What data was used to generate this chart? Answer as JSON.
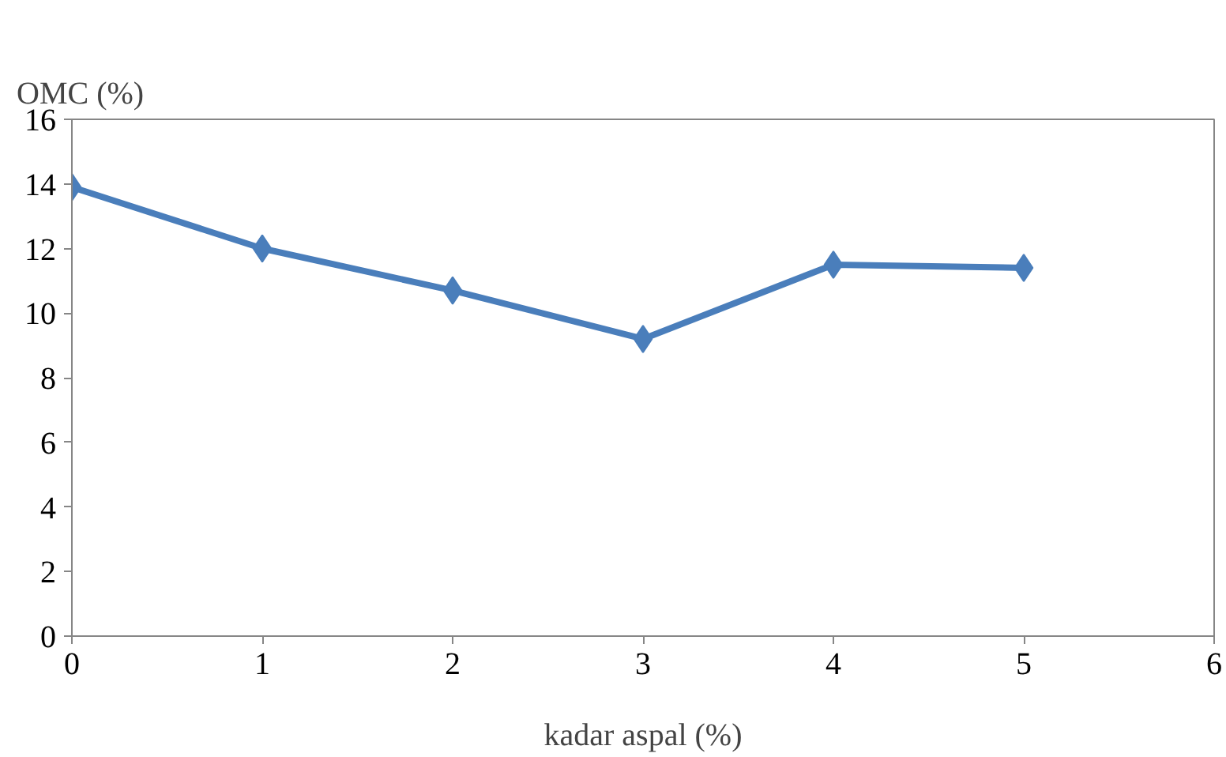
{
  "chart_data": {
    "type": "line",
    "xlabel": "kadar aspal (%)",
    "ylabel": "OMC (%)",
    "x": [
      0,
      1,
      2,
      3,
      4,
      5
    ],
    "series": [
      {
        "color": "#4a7ebb",
        "values": [
          13.9,
          12.0,
          10.7,
          9.2,
          11.5,
          11.4
        ]
      }
    ],
    "xlim": [
      0,
      6
    ],
    "xticks": [
      0,
      1,
      2,
      3,
      4,
      5,
      6
    ],
    "ylim": [
      0,
      16
    ],
    "yticks": [
      0,
      2,
      4,
      6,
      8,
      10,
      12,
      14,
      16
    ],
    "marker": "diamond",
    "line_style": "solid"
  }
}
